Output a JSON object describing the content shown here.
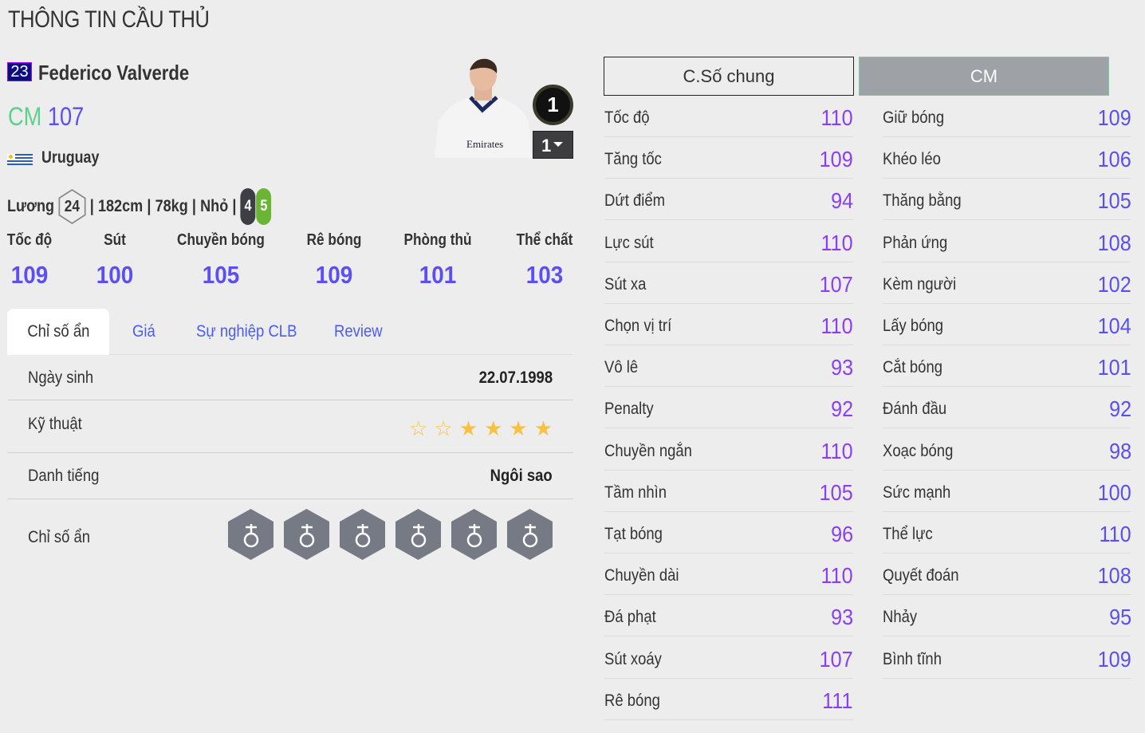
{
  "page_title": "THÔNG TIN CẦU THỦ",
  "player": {
    "number": "23",
    "name": "Federico Valverde",
    "position": "CM",
    "overall": "107",
    "nation": "Uruguay",
    "salary_label": "Lương",
    "salary": "24",
    "height": "182cm",
    "weight": "78kg",
    "body": "Nhỏ",
    "weak_foot": "4",
    "strong_foot": "5",
    "card_badge": "1",
    "upgrade_level": "1"
  },
  "main_stats": [
    {
      "label": "Tốc độ",
      "value": "109"
    },
    {
      "label": "Sút",
      "value": "100"
    },
    {
      "label": "Chuyền bóng",
      "value": "105"
    },
    {
      "label": "Rê bóng",
      "value": "109"
    },
    {
      "label": "Phòng thủ",
      "value": "101"
    },
    {
      "label": "Thể chất",
      "value": "103"
    }
  ],
  "tabs": [
    {
      "label": "Chỉ số ẩn"
    },
    {
      "label": "Giá"
    },
    {
      "label": "Sự nghiệp CLB"
    },
    {
      "label": "Review"
    }
  ],
  "details": {
    "birth_label": "Ngày sinh",
    "birth": "22.07.1998",
    "skill_label": "Kỹ thuật",
    "skill_stars": 4,
    "skill_max": 6,
    "fame_label": "Danh tiếng",
    "fame": "Ngôi sao",
    "traits_label": "Chỉ số ẩn",
    "traits": [
      "long-shot-icon",
      "finesse-shot-icon",
      "power-header-icon",
      "outside-foot-icon",
      "chip-shot-icon",
      "dribbler-icon"
    ]
  },
  "stat_tabs": {
    "general": "C.Số chung",
    "position": "CM"
  },
  "colors": {
    "position": "#5cd08c",
    "value": "#5b4ff0",
    "value_alt": "#8a3ff0",
    "star": "#f7c242"
  },
  "stats_left": [
    {
      "name": "Tốc độ",
      "value": "110"
    },
    {
      "name": "Tăng tốc",
      "value": "109"
    },
    {
      "name": "Dứt điểm",
      "value": "94"
    },
    {
      "name": "Lực sút",
      "value": "110"
    },
    {
      "name": "Sút xa",
      "value": "107"
    },
    {
      "name": "Chọn vị trí",
      "value": "110"
    },
    {
      "name": "Vô lê",
      "value": "93"
    },
    {
      "name": "Penalty",
      "value": "92"
    },
    {
      "name": "Chuyền ngắn",
      "value": "110"
    },
    {
      "name": "Tầm nhìn",
      "value": "105"
    },
    {
      "name": "Tạt bóng",
      "value": "96"
    },
    {
      "name": "Chuyền dài",
      "value": "110"
    },
    {
      "name": "Đá phạt",
      "value": "93"
    },
    {
      "name": "Sút xoáy",
      "value": "107"
    },
    {
      "name": "Rê bóng",
      "value": "111"
    }
  ],
  "stats_right": [
    {
      "name": "Giữ bóng",
      "value": "109"
    },
    {
      "name": "Khéo léo",
      "value": "106"
    },
    {
      "name": "Thăng bằng",
      "value": "105"
    },
    {
      "name": "Phản ứng",
      "value": "108"
    },
    {
      "name": "Kèm người",
      "value": "102"
    },
    {
      "name": "Lấy bóng",
      "value": "104"
    },
    {
      "name": "Cắt bóng",
      "value": "101"
    },
    {
      "name": "Đánh đầu",
      "value": "92"
    },
    {
      "name": "Xoạc bóng",
      "value": "98"
    },
    {
      "name": "Sức mạnh",
      "value": "100"
    },
    {
      "name": "Thể lực",
      "value": "110"
    },
    {
      "name": "Quyết đoán",
      "value": "108"
    },
    {
      "name": "Nhảy",
      "value": "95"
    },
    {
      "name": "Bình tĩnh",
      "value": "109"
    }
  ]
}
